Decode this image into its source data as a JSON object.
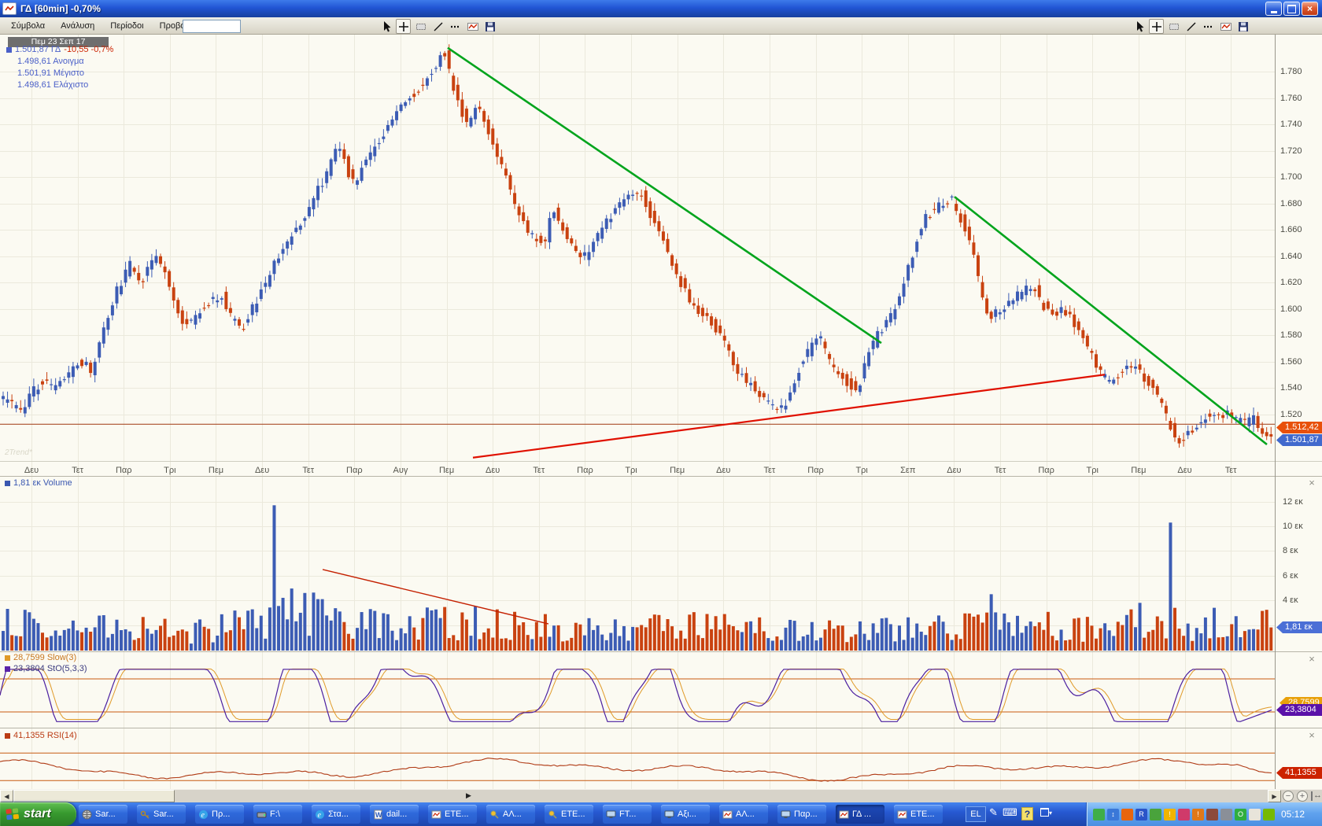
{
  "window": {
    "title": "ΓΔ [60min] -0,70%"
  },
  "menu": {
    "items": [
      "Σύμβολα",
      "Ανάλυση",
      "Περίοδοι",
      "Προβολή"
    ]
  },
  "toolbar": {
    "tools": [
      "cursor",
      "crosshair",
      "region",
      "trendline",
      "dotted-line",
      "chart-template",
      "save"
    ]
  },
  "info": {
    "date": "Πεμ 23 Σεπ 17",
    "quote_value": "1.501,87 ΓΔ",
    "quote_change": "-10,55 -0,7%",
    "open": "1.498,61 Ανοιγμα",
    "high": "1.501,91 Μέγιστο",
    "low": "1.498,61 Ελάχιστο"
  },
  "watermark": "2Trend*",
  "tags": {
    "line": "1.512,42",
    "last": "1.501,87"
  },
  "volume": {
    "header": "1,81 εκ Volume",
    "tag": "1,81 εκ",
    "ticks": [
      "12 εκ",
      "10 εκ",
      "8 εκ",
      "6 εκ",
      "4 εκ"
    ]
  },
  "stoch": {
    "line1": "28,7599 Slow(3)",
    "line2": "23,3804 StO(5,3,3)",
    "tag_top": "28,7599",
    "tag": "23,3804"
  },
  "rsi": {
    "header": "41,1355 RSI(14)",
    "tag": "41,1355"
  },
  "chart_data": {
    "type": "candlestick",
    "symbol": "ΓΔ",
    "interval": "60min",
    "change_pct": "-0,70%",
    "ylim": [
      1483,
      1808
    ],
    "y_ticks": [
      1780,
      1760,
      1740,
      1720,
      1700,
      1680,
      1660,
      1640,
      1620,
      1600,
      1580,
      1560,
      1540,
      1520
    ],
    "x_labels": [
      "Δευ",
      "Τετ",
      "Παρ",
      "Τρι",
      "Πεμ",
      "Δευ",
      "Τετ",
      "Παρ",
      "Αυγ",
      "Πεμ",
      "Δευ",
      "Τετ",
      "Παρ",
      "Τρι",
      "Πεμ",
      "Δευ",
      "Τετ",
      "Παρ",
      "Τρι",
      "Σεπ",
      "Δευ",
      "Τετ",
      "Παρ",
      "Τρι",
      "Πεμ",
      "Δευ",
      "Τετ"
    ],
    "last_price": 1501.87,
    "current_price_line": 1512.42,
    "price_anchors": [
      [
        2,
        1532
      ],
      [
        20,
        1528
      ],
      [
        32,
        1522
      ],
      [
        45,
        1535
      ],
      [
        59,
        1546
      ],
      [
        72,
        1540
      ],
      [
        85,
        1544
      ],
      [
        95,
        1552
      ],
      [
        106,
        1562
      ],
      [
        116,
        1556
      ],
      [
        122,
        1550
      ],
      [
        135,
        1580
      ],
      [
        152,
        1612
      ],
      [
        162,
        1622
      ],
      [
        170,
        1634
      ],
      [
        178,
        1628
      ],
      [
        186,
        1620
      ],
      [
        194,
        1632
      ],
      [
        202,
        1642
      ],
      [
        215,
        1628
      ],
      [
        228,
        1604
      ],
      [
        239,
        1588
      ],
      [
        252,
        1592
      ],
      [
        265,
        1603
      ],
      [
        278,
        1608
      ],
      [
        287,
        1610
      ],
      [
        300,
        1592
      ],
      [
        315,
        1586
      ],
      [
        330,
        1605
      ],
      [
        345,
        1622
      ],
      [
        360,
        1642
      ],
      [
        375,
        1655
      ],
      [
        390,
        1668
      ],
      [
        405,
        1685
      ],
      [
        420,
        1702
      ],
      [
        430,
        1715
      ],
      [
        436,
        1726
      ],
      [
        444,
        1712
      ],
      [
        450,
        1700
      ],
      [
        457,
        1692
      ],
      [
        468,
        1712
      ],
      [
        480,
        1722
      ],
      [
        495,
        1735
      ],
      [
        510,
        1750
      ],
      [
        528,
        1762
      ],
      [
        545,
        1772
      ],
      [
        560,
        1786
      ],
      [
        569,
        1797
      ],
      [
        578,
        1776
      ],
      [
        590,
        1752
      ],
      [
        600,
        1740
      ],
      [
        612,
        1757
      ],
      [
        622,
        1742
      ],
      [
        635,
        1718
      ],
      [
        649,
        1700
      ],
      [
        660,
        1680
      ],
      [
        672,
        1662
      ],
      [
        685,
        1654
      ],
      [
        697,
        1650
      ],
      [
        708,
        1676
      ],
      [
        718,
        1662
      ],
      [
        730,
        1648
      ],
      [
        745,
        1637
      ],
      [
        760,
        1652
      ],
      [
        775,
        1665
      ],
      [
        790,
        1676
      ],
      [
        805,
        1684
      ],
      [
        819,
        1689
      ],
      [
        832,
        1672
      ],
      [
        845,
        1655
      ],
      [
        858,
        1638
      ],
      [
        872,
        1618
      ],
      [
        888,
        1600
      ],
      [
        900,
        1596
      ],
      [
        912,
        1588
      ],
      [
        925,
        1574
      ],
      [
        938,
        1558
      ],
      [
        950,
        1547
      ],
      [
        962,
        1541
      ],
      [
        975,
        1534
      ],
      [
        988,
        1527
      ],
      [
        1000,
        1523
      ],
      [
        1012,
        1542
      ],
      [
        1025,
        1561
      ],
      [
        1038,
        1572
      ],
      [
        1048,
        1577
      ],
      [
        1060,
        1560
      ],
      [
        1072,
        1549
      ],
      [
        1085,
        1543
      ],
      [
        1096,
        1539
      ],
      [
        1108,
        1566
      ],
      [
        1120,
        1579
      ],
      [
        1135,
        1591
      ],
      [
        1148,
        1609
      ],
      [
        1160,
        1631
      ],
      [
        1170,
        1651
      ],
      [
        1180,
        1669
      ],
      [
        1195,
        1676
      ],
      [
        1213,
        1685
      ],
      [
        1228,
        1666
      ],
      [
        1240,
        1648
      ],
      [
        1252,
        1612
      ],
      [
        1261,
        1593
      ],
      [
        1275,
        1599
      ],
      [
        1290,
        1607
      ],
      [
        1305,
        1613
      ],
      [
        1318,
        1619
      ],
      [
        1330,
        1603
      ],
      [
        1342,
        1597
      ],
      [
        1355,
        1599
      ],
      [
        1368,
        1591
      ],
      [
        1380,
        1579
      ],
      [
        1392,
        1566
      ],
      [
        1405,
        1549
      ],
      [
        1418,
        1545
      ],
      [
        1432,
        1553
      ],
      [
        1447,
        1557
      ],
      [
        1458,
        1549
      ],
      [
        1470,
        1541
      ],
      [
        1482,
        1526
      ],
      [
        1494,
        1509
      ],
      [
        1505,
        1499
      ],
      [
        1515,
        1506
      ],
      [
        1528,
        1513
      ],
      [
        1540,
        1519
      ],
      [
        1552,
        1516
      ],
      [
        1565,
        1520
      ],
      [
        1578,
        1516
      ],
      [
        1590,
        1513
      ],
      [
        1600,
        1517
      ],
      [
        1610,
        1505
      ],
      [
        1616,
        1501
      ]
    ],
    "trendlines": [
      {
        "name": "down-trendline-1",
        "color": "#00a41c",
        "width": 2.6,
        "from": [
          569,
          1798
        ],
        "to": [
          1120,
          1574
        ]
      },
      {
        "name": "down-trendline-2",
        "color": "#00a41c",
        "width": 2.6,
        "from": [
          1213,
          1685
        ],
        "to": [
          1610,
          1497
        ]
      },
      {
        "name": "support-trendline",
        "color": "#e01000",
        "width": 2.2,
        "from": [
          601,
          1487
        ],
        "to": [
          1404,
          1550
        ]
      }
    ],
    "volume": {
      "unit": "εκ",
      "ticks": [
        12,
        10,
        8,
        6,
        4
      ],
      "current": 1.81,
      "base_anchors": [
        [
          0,
          2.0
        ],
        [
          120,
          1.8
        ],
        [
          250,
          1.4
        ],
        [
          330,
          2.4
        ],
        [
          375,
          3.1
        ],
        [
          420,
          2.7
        ],
        [
          480,
          1.8
        ],
        [
          560,
          2.2
        ],
        [
          640,
          1.9
        ],
        [
          760,
          1.5
        ],
        [
          880,
          1.8
        ],
        [
          1000,
          1.6
        ],
        [
          1120,
          1.5
        ],
        [
          1200,
          1.8
        ],
        [
          1260,
          2.1
        ],
        [
          1380,
          1.7
        ],
        [
          1450,
          2.4
        ],
        [
          1520,
          2.0
        ],
        [
          1616,
          1.9
        ]
      ],
      "spikes": [
        [
          348,
          11.7
        ],
        [
          1490,
          10.3
        ],
        [
          389,
          4.6
        ],
        [
          1262,
          4.5
        ],
        [
          407,
          4.1
        ],
        [
          1449,
          3.8
        ],
        [
          604,
          3.5
        ],
        [
          1545,
          3.4
        ]
      ],
      "trendline": {
        "color": "#c42000",
        "width": 1.4,
        "from": [
          410,
          6.5
        ],
        "to": [
          697,
          2.1
        ]
      }
    },
    "stoch": {
      "name": "StO(5,3,3)",
      "slow_name": "Slow(3)",
      "bands": [
        80,
        20
      ],
      "current": 23.3804,
      "slow_current": 28.7599
    },
    "rsi": {
      "name": "RSI(14)",
      "bands": [
        70,
        30
      ],
      "current": 41.1355
    }
  },
  "taskbar": {
    "start_label": "start",
    "lang": "EL",
    "clock": "05:12",
    "tasks": [
      {
        "label": "Sar...",
        "icon": "globe",
        "active": false
      },
      {
        "label": "Sar...",
        "icon": "key",
        "active": false
      },
      {
        "label": "Πρ...",
        "icon": "ie",
        "active": false
      },
      {
        "label": "F:\\",
        "icon": "drive",
        "active": false
      },
      {
        "label": "Στα...",
        "icon": "ie",
        "active": false
      },
      {
        "label": "dail...",
        "icon": "word",
        "active": false
      },
      {
        "label": "ΕΤΕ...",
        "icon": "chart",
        "active": false
      },
      {
        "label": "ΑΛ...",
        "icon": "pin",
        "active": false
      },
      {
        "label": "ΕΤΕ...",
        "icon": "pin",
        "active": false
      },
      {
        "label": "FT...",
        "icon": "monitor",
        "active": false
      },
      {
        "label": "Αξι...",
        "icon": "monitor",
        "active": false
      },
      {
        "label": "ΑΛ...",
        "icon": "chart",
        "active": false
      },
      {
        "label": "Παρ...",
        "icon": "monitor",
        "active": false
      },
      {
        "label": "ΓΔ ...",
        "icon": "chart",
        "active": true
      },
      {
        "label": "ΕΤΕ...",
        "icon": "chart",
        "active": false
      }
    ],
    "tray": [
      {
        "name": "removable-device-icon",
        "color": "#3fae49",
        "glyph": ""
      },
      {
        "name": "update-arrows-icon",
        "color": "#3a78d8",
        "glyph": "↕"
      },
      {
        "name": "java-icon",
        "color": "#e8650e",
        "glyph": ""
      },
      {
        "name": "network-r-icon",
        "color": "#2b55c8",
        "glyph": "R"
      },
      {
        "name": "messenger-offline-icon",
        "color": "#49a33c",
        "glyph": ""
      },
      {
        "name": "security-shield-icon",
        "color": "#f0b400",
        "glyph": "!"
      },
      {
        "name": "mail-alert-icon",
        "color": "#d03a6a",
        "glyph": ""
      },
      {
        "name": "alert-flag-icon",
        "color": "#e07818",
        "glyph": "!"
      },
      {
        "name": "binoculars-icon",
        "color": "#8c4a3c",
        "glyph": ""
      },
      {
        "name": "audio-icon",
        "color": "#8a8f98",
        "glyph": ""
      },
      {
        "name": "antivirus-ring-icon",
        "color": "#2fae3f",
        "glyph": "O"
      },
      {
        "name": "nod32-icon",
        "color": "#e8e4da",
        "glyph": ""
      },
      {
        "name": "nvidia-icon",
        "color": "#76b900",
        "glyph": ""
      }
    ]
  }
}
